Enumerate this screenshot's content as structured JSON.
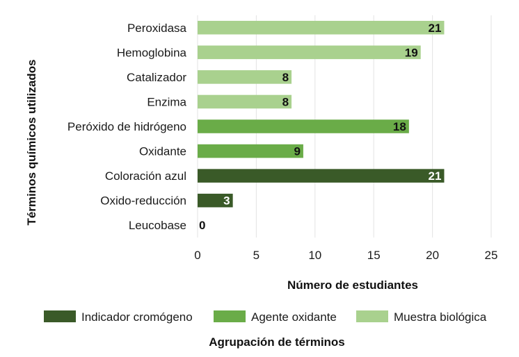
{
  "chart_data": {
    "type": "bar",
    "orientation": "horizontal",
    "categories": [
      "Peroxidasa",
      "Hemoglobina",
      "Catalizador",
      "Enzima",
      "Peróxido de hidrógeno",
      "Oxidante",
      "Coloración azul",
      "Oxido-reducción",
      "Leucobase"
    ],
    "values": [
      21,
      19,
      8,
      8,
      18,
      9,
      21,
      3,
      0
    ],
    "groups": [
      "Muestra biológica",
      "Muestra biológica",
      "Muestra biológica",
      "Muestra biológica",
      "Agente oxidante",
      "Agente oxidante",
      "Indicador cromógeno",
      "Indicador cromógeno",
      "Indicador cromógeno"
    ],
    "value_labels": [
      "21",
      "19",
      "8",
      "8",
      "18",
      "9",
      "21",
      "3",
      "0"
    ],
    "xlabel": "Número de estudiantes",
    "ylabel": "Términos químicos utilizados",
    "xlim": [
      0,
      25
    ],
    "xticks": [
      "0",
      "5",
      "10",
      "15",
      "20",
      "25"
    ],
    "xtick_values": [
      0,
      5,
      10,
      15,
      20,
      25
    ],
    "grid": "vertical",
    "legend": {
      "title": "Agrupación de términos",
      "placement": "bottom",
      "items": [
        {
          "label": "Indicador cromógeno",
          "color": "#3a5a28"
        },
        {
          "label": "Agente oxidante",
          "color": "#6aac48"
        },
        {
          "label": "Muestra biológica",
          "color": "#a9d18e"
        }
      ]
    },
    "colors": {
      "Indicador cromógeno": "#3a5a28",
      "Agente oxidante": "#6aac48",
      "Muestra biológica": "#a9d18e"
    },
    "label_colors": {
      "Indicador cromógeno": "#ffffff",
      "Agente oxidante": "#111111",
      "Muestra biológica": "#111111"
    }
  }
}
